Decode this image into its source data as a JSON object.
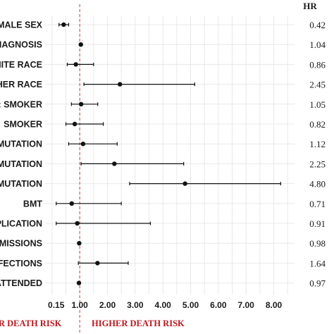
{
  "chart_data": {
    "type": "scatter",
    "subtype": "forest-plot",
    "hr_header": "HR",
    "rows": [
      {
        "label": "MALE SEX",
        "hr": 0.42,
        "lo": 0.25,
        "hi": 0.6,
        "hr_text": "0.42"
      },
      {
        "label": "IAGNOSIS",
        "hr": 1.04,
        "lo": 1.04,
        "hi": 1.04,
        "hr_text": "1.04"
      },
      {
        "label": "HITE RACE",
        "hr": 0.86,
        "lo": 0.55,
        "hi": 1.5,
        "hr_text": "0.86"
      },
      {
        "label": "HER RACE",
        "hr": 2.45,
        "lo": 1.15,
        "hi": 5.15,
        "hr_text": "2.45"
      },
      {
        "label": ": SMOKER",
        "hr": 1.05,
        "lo": 0.7,
        "hi": 1.65,
        "hr_text": "1.05"
      },
      {
        "label": "SMOKER",
        "hr": 0.82,
        "lo": 0.5,
        "hi": 1.85,
        "hr_text": "0.82"
      },
      {
        "label": "MUTATION",
        "hr": 1.12,
        "lo": 0.6,
        "hi": 2.35,
        "hr_text": "1.12"
      },
      {
        "label": "MUTATION",
        "hr": 2.25,
        "lo": 1.05,
        "hi": 4.75,
        "hr_text": "2.25"
      },
      {
        "label": "MUTATION",
        "hr": 4.8,
        "lo": 2.8,
        "hi": 8.25,
        "hr_text": "4.80"
      },
      {
        "label": "BMT",
        "hr": 0.71,
        "lo": 0.15,
        "hi": 2.5,
        "hr_text": "0.71"
      },
      {
        "label": "PLICATION",
        "hr": 0.91,
        "lo": 0.15,
        "hi": 3.55,
        "hr_text": "0.91"
      },
      {
        "label": "MISSIONS",
        "hr": 0.98,
        "lo": 0.98,
        "hi": 0.98,
        "hr_text": "0.98"
      },
      {
        "label": "FECTIONS",
        "hr": 1.64,
        "lo": 0.95,
        "hi": 2.75,
        "hr_text": "1.64"
      },
      {
        "label": "ATTENDED",
        "hr": 0.97,
        "lo": 0.97,
        "hi": 0.97,
        "hr_text": "0.97"
      }
    ],
    "x_ticks": [
      {
        "value": 0.15,
        "label": "0.15"
      },
      {
        "value": 1.0,
        "label": "1.00"
      },
      {
        "value": 2.0,
        "label": "2.00"
      },
      {
        "value": 3.0,
        "label": "3.00"
      },
      {
        "value": 4.0,
        "label": "4.00"
      },
      {
        "value": 5.0,
        "label": "5.00"
      },
      {
        "value": 6.0,
        "label": "6.00"
      },
      {
        "value": 7.0,
        "label": "7.00"
      },
      {
        "value": 8.0,
        "label": "8.00"
      }
    ],
    "reference_value": 1.0,
    "xlim": [
      -0.25,
      8.75
    ],
    "grid": true,
    "lower_risk_label": "R DEATH RISK",
    "higher_risk_label": "HIGHER DEATH RISK",
    "colors": {
      "point": "#111111",
      "ci": "#111111",
      "reference_line": "#e0565b",
      "grid": "#e8e8e8",
      "risk_text": "#c0151c"
    }
  }
}
